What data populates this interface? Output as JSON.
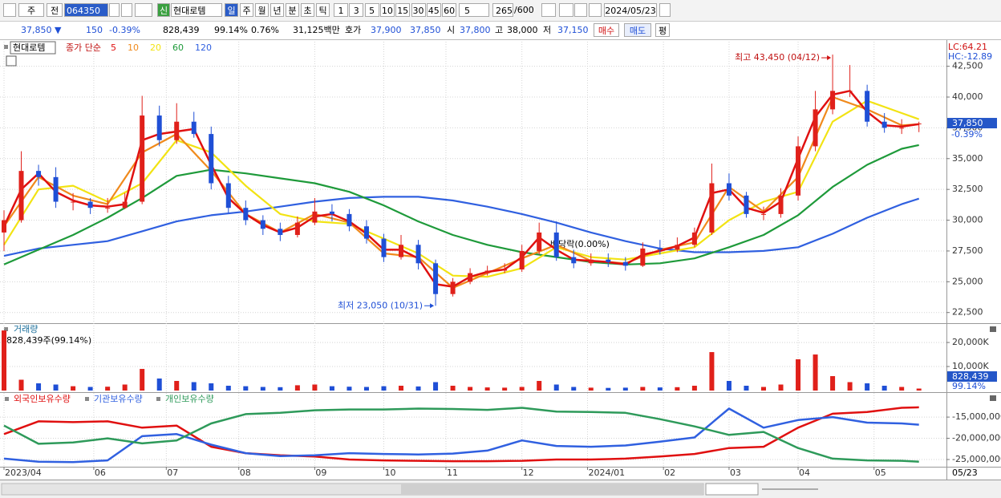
{
  "toolbar": {
    "period": "주",
    "prev": "전",
    "code": "064350",
    "new": "신",
    "name": "현대로템",
    "units": [
      "일",
      "주",
      "월",
      "년",
      "분",
      "초",
      "틱"
    ],
    "minutes": [
      "1",
      "3",
      "5",
      "10",
      "15",
      "30",
      "45",
      "60"
    ],
    "step": "5",
    "count": "265",
    "max": "/600",
    "date": "2024/05/23"
  },
  "quote": {
    "price": "37,850 ▼",
    "change": "150",
    "rate": "-0.39%",
    "volume": "828,439",
    "volume_rate": "99.14%",
    "turnover_rate": "0.76%",
    "amount": "31,125백만",
    "bid_label": "호가",
    "ask": "37,900",
    "bid": "37,850",
    "open_label": "시",
    "open": "37,800",
    "high_label": "고",
    "high": "38,000",
    "low_label": "저",
    "low": "37,150",
    "buy": "매수",
    "sell": "매도",
    "avg": "평"
  },
  "chart_data": [
    {
      "type": "candlestick",
      "name": "현대로템",
      "legend_prefix": "종가 단순",
      "lc": "LC:64.21",
      "hc": "HC:-12.89",
      "up_color": "#e0201a",
      "down_color": "#1f4fd6",
      "grid": true,
      "xlim": [
        0,
        266
      ],
      "ylim": [
        21700,
        44300
      ],
      "yticks": [
        {
          "value": 22500,
          "label": "22,500"
        },
        {
          "value": 25000,
          "label": "25,000"
        },
        {
          "value": 27500,
          "label": "27,500"
        },
        {
          "value": 30000,
          "label": "30,000"
        },
        {
          "value": 32500,
          "label": "32,500"
        },
        {
          "value": 35000,
          "label": "35,000"
        },
        {
          "value": 37500,
          "label": "37,500"
        },
        {
          "value": 40000,
          "label": "40,000"
        },
        {
          "value": 42500,
          "label": "42,500"
        }
      ],
      "x": [
        0,
        5,
        10,
        15,
        20,
        25,
        30,
        35,
        40,
        45,
        50,
        55,
        60,
        65,
        70,
        75,
        80,
        85,
        90,
        95,
        100,
        105,
        110,
        115,
        120,
        125,
        130,
        135,
        140,
        145,
        150,
        155,
        160,
        165,
        170,
        175,
        180,
        185,
        190,
        195,
        200,
        205,
        210,
        215,
        220,
        225,
        230,
        235,
        240,
        245,
        250,
        255,
        260,
        265
      ],
      "open": [
        29000,
        30000,
        34000,
        33500,
        31500,
        31500,
        31000,
        31000,
        31500,
        38500,
        36500,
        38000,
        37000,
        33000,
        31000,
        30000,
        29300,
        28800,
        29800,
        30700,
        30500,
        29500,
        28500,
        27000,
        28000,
        26500,
        24000,
        25000,
        25700,
        25900,
        26000,
        27500,
        29000,
        27000,
        26500,
        26800,
        26600,
        26300,
        27700,
        27600,
        28000,
        29000,
        33000,
        32000,
        30500,
        30500,
        32000,
        36000,
        39000,
        40500,
        40500,
        38000,
        37500,
        37800
      ],
      "high": [
        30800,
        35600,
        34500,
        34300,
        32200,
        31800,
        31800,
        32200,
        40100,
        39300,
        39500,
        38800,
        37600,
        33600,
        31600,
        30400,
        29800,
        30300,
        31800,
        31300,
        30900,
        30000,
        28900,
        28800,
        28400,
        26800,
        25300,
        26100,
        26300,
        26500,
        28000,
        29800,
        29900,
        27600,
        27300,
        27300,
        27000,
        28200,
        28400,
        28600,
        29400,
        34600,
        33800,
        32300,
        31100,
        32600,
        36800,
        40500,
        43450,
        42600,
        41000,
        38700,
        38200,
        38000
      ],
      "low": [
        27500,
        29800,
        32800,
        31000,
        30800,
        30500,
        30600,
        30900,
        31300,
        36000,
        36200,
        36700,
        32500,
        30600,
        29600,
        28800,
        28300,
        28600,
        29600,
        29900,
        29100,
        28100,
        26600,
        26800,
        26000,
        23050,
        23800,
        24800,
        25500,
        25700,
        25800,
        27200,
        26700,
        26100,
        26300,
        26200,
        25900,
        26200,
        27200,
        27400,
        27800,
        28800,
        31600,
        30200,
        30000,
        30200,
        31600,
        35600,
        38600,
        40000,
        37600,
        37100,
        37000,
        37150
      ],
      "close": [
        30000,
        34000,
        33500,
        31500,
        31500,
        31000,
        31000,
        31500,
        38500,
        36500,
        38000,
        37000,
        33000,
        31000,
        30000,
        29300,
        28800,
        29800,
        30700,
        30500,
        29500,
        28500,
        27000,
        28000,
        26500,
        24000,
        25000,
        25700,
        25900,
        26000,
        27500,
        29000,
        27000,
        26500,
        26800,
        26600,
        26300,
        27700,
        27600,
        28000,
        29000,
        33000,
        32000,
        30500,
        30500,
        32000,
        36000,
        39000,
        40500,
        40500,
        38000,
        37500,
        37500,
        37850
      ],
      "series": [
        {
          "name": "5",
          "color": "#e01010",
          "x": [
            0,
            5,
            10,
            15,
            20,
            25,
            30,
            35,
            40,
            45,
            50,
            55,
            60,
            65,
            70,
            75,
            80,
            85,
            90,
            95,
            100,
            105,
            110,
            115,
            120,
            125,
            130,
            135,
            140,
            145,
            150,
            155,
            160,
            165,
            170,
            175,
            180,
            185,
            190,
            195,
            200,
            205,
            210,
            215,
            220,
            225,
            230,
            235,
            240,
            245,
            250,
            255,
            260,
            265
          ],
          "values": [
            29500,
            32500,
            33800,
            32300,
            31600,
            31200,
            31100,
            31300,
            36500,
            37000,
            37200,
            37400,
            34500,
            31800,
            30500,
            29600,
            29000,
            29400,
            30300,
            30500,
            29900,
            28900,
            27600,
            27600,
            26900,
            24800,
            24600,
            25400,
            25800,
            26000,
            27000,
            28600,
            27600,
            26800,
            26700,
            26600,
            26400,
            27200,
            27500,
            27900,
            28600,
            32200,
            32500,
            31000,
            30600,
            31500,
            35000,
            38400,
            40200,
            40500,
            38800,
            37700,
            37600,
            37800
          ]
        },
        {
          "name": "10",
          "color": "#f08a1c",
          "x": [
            0,
            10,
            20,
            30,
            40,
            50,
            60,
            70,
            80,
            90,
            100,
            110,
            120,
            130,
            140,
            150,
            160,
            170,
            180,
            190,
            200,
            210,
            220,
            230,
            240,
            250,
            260,
            265
          ],
          "values": [
            29500,
            33500,
            32000,
            31300,
            35500,
            37000,
            34000,
            30500,
            29000,
            30500,
            29800,
            27300,
            27000,
            24500,
            25700,
            26900,
            28000,
            26700,
            26500,
            27600,
            28200,
            32700,
            30700,
            33500,
            40000,
            39000,
            37700,
            37800
          ]
        },
        {
          "name": "20",
          "color": "#f2e313",
          "x": [
            0,
            10,
            20,
            30,
            40,
            50,
            60,
            70,
            80,
            90,
            100,
            110,
            120,
            130,
            140,
            150,
            160,
            170,
            180,
            190,
            200,
            210,
            220,
            230,
            240,
            250,
            260,
            265
          ],
          "values": [
            28000,
            32500,
            32800,
            31500,
            33000,
            36500,
            35500,
            32800,
            30500,
            29900,
            29700,
            28500,
            27300,
            25500,
            25400,
            26100,
            27800,
            27000,
            26800,
            27300,
            27800,
            30000,
            31500,
            32300,
            38000,
            39700,
            38700,
            38200
          ]
        },
        {
          "name": "60",
          "color": "#1e9a3a",
          "x": [
            0,
            10,
            20,
            30,
            40,
            50,
            60,
            70,
            80,
            90,
            100,
            110,
            120,
            130,
            140,
            150,
            160,
            170,
            180,
            190,
            200,
            210,
            220,
            230,
            240,
            250,
            260,
            265
          ],
          "values": [
            26400,
            27600,
            28800,
            30200,
            31800,
            33600,
            34100,
            33800,
            33400,
            33000,
            32300,
            31200,
            29900,
            28800,
            28000,
            27400,
            27000,
            26600,
            26400,
            26500,
            26900,
            27800,
            28800,
            30400,
            32700,
            34500,
            35800,
            36100
          ]
        },
        {
          "name": "120",
          "color": "#3060e0",
          "x": [
            0,
            10,
            20,
            30,
            40,
            50,
            60,
            70,
            80,
            90,
            100,
            110,
            120,
            130,
            140,
            150,
            160,
            170,
            180,
            190,
            200,
            210,
            220,
            230,
            240,
            250,
            260,
            265
          ],
          "values": [
            27100,
            27700,
            28000,
            28300,
            29100,
            29900,
            30400,
            30700,
            31100,
            31500,
            31800,
            31900,
            31900,
            31600,
            31100,
            30500,
            29800,
            29000,
            28300,
            27700,
            27400,
            27400,
            27500,
            27800,
            28900,
            30200,
            31300,
            31750
          ]
        }
      ],
      "last": {
        "value": 37850,
        "label": "37,850"
      },
      "change_label": "-0.39%",
      "high_note": {
        "value": 43450,
        "label": "최고 43,450 (04/12)"
      },
      "low_note": {
        "value": 23050,
        "label": "최저 23,050 (10/31)"
      },
      "event_note": "배당락(0.00%)"
    },
    {
      "type": "bar",
      "title": "거래량",
      "summary": "828,439주(99.14%)",
      "grid": true,
      "xlim": [
        0,
        266
      ],
      "ylim": [
        0,
        27700
      ],
      "yticks": [
        {
          "value": 10000,
          "label": "10,000K"
        },
        {
          "value": 20000,
          "label": "20,000K"
        }
      ],
      "x": [
        0,
        5,
        10,
        15,
        20,
        25,
        30,
        35,
        40,
        45,
        50,
        55,
        60,
        65,
        70,
        75,
        80,
        85,
        90,
        95,
        100,
        105,
        110,
        115,
        120,
        125,
        130,
        135,
        140,
        145,
        150,
        155,
        160,
        165,
        170,
        175,
        180,
        185,
        190,
        195,
        200,
        205,
        210,
        215,
        220,
        225,
        230,
        235,
        240,
        245,
        250,
        255,
        260,
        265
      ],
      "values": [
        25000,
        4500,
        3000,
        2500,
        1800,
        1500,
        1600,
        2500,
        9000,
        5000,
        4000,
        3500,
        3000,
        2000,
        1800,
        1500,
        1400,
        2200,
        2500,
        1800,
        1600,
        1500,
        1800,
        2000,
        1700,
        3500,
        2000,
        1500,
        1300,
        1200,
        1500,
        4000,
        2500,
        1500,
        1200,
        1100,
        1200,
        1500,
        1300,
        1400,
        2000,
        16000,
        4000,
        2000,
        1500,
        2500,
        13000,
        15000,
        6000,
        3500,
        3000,
        2000,
        1500,
        828.439
      ],
      "current": {
        "value": 828.439,
        "label": "828,439"
      },
      "current_pct": "99.14%"
    },
    {
      "type": "line",
      "grid": true,
      "xlim": [
        0,
        266
      ],
      "ylim": [
        -26700000,
        -9500000
      ],
      "yticks": [
        {
          "value": -25000000,
          "label": "-25,000,000"
        },
        {
          "value": -20000000,
          "label": "-20,000,000"
        },
        {
          "value": -15000000,
          "label": "-15,000,000"
        }
      ],
      "xticks": [
        {
          "value": 0,
          "label": "2023/04"
        },
        {
          "value": 26,
          "label": "06"
        },
        {
          "value": 47,
          "label": "07"
        },
        {
          "value": 68,
          "label": "08"
        },
        {
          "value": 90,
          "label": "09"
        },
        {
          "value": 110,
          "label": "10"
        },
        {
          "value": 128,
          "label": "11"
        },
        {
          "value": 150,
          "label": "12"
        },
        {
          "value": 169,
          "label": "2024/01"
        },
        {
          "value": 191,
          "label": "02"
        },
        {
          "value": 210,
          "label": "03"
        },
        {
          "value": 230,
          "label": "04"
        },
        {
          "value": 252,
          "label": "05"
        }
      ],
      "last_date": "05/23",
      "x": [
        0,
        10,
        20,
        30,
        40,
        50,
        60,
        70,
        80,
        90,
        100,
        110,
        120,
        130,
        140,
        150,
        160,
        170,
        180,
        190,
        200,
        210,
        220,
        230,
        240,
        250,
        260,
        265
      ],
      "series": [
        {
          "name": "외국인보유수량",
          "color": "#e01010",
          "values": [
            -19000000,
            -16000000,
            -16200000,
            -16000000,
            -17500000,
            -17000000,
            -22000000,
            -23500000,
            -24000000,
            -24300000,
            -25000000,
            -25200000,
            -25300000,
            -25400000,
            -25400000,
            -25300000,
            -25000000,
            -25000000,
            -24800000,
            -24300000,
            -23700000,
            -22300000,
            -22000000,
            -17500000,
            -14200000,
            -13800000,
            -12800000,
            -12700000
          ]
        },
        {
          "name": "기관보유수량",
          "color": "#3060e0",
          "values": [
            -24800000,
            -25500000,
            -25600000,
            -25200000,
            -19500000,
            -19000000,
            -21500000,
            -23500000,
            -24200000,
            -24000000,
            -23500000,
            -23700000,
            -23800000,
            -23600000,
            -22900000,
            -20500000,
            -21800000,
            -22000000,
            -21700000,
            -20800000,
            -19800000,
            -13000000,
            -17500000,
            -15700000,
            -15000000,
            -16300000,
            -16500000,
            -16800000
          ]
        },
        {
          "name": "개인보유수량",
          "color": "#2e9a5a",
          "values": [
            -17000000,
            -21300000,
            -21000000,
            -20000000,
            -21200000,
            -20500000,
            -16500000,
            -14300000,
            -14000000,
            -13400000,
            -13200000,
            -13200000,
            -13000000,
            -13100000,
            -13300000,
            -12800000,
            -13700000,
            -13800000,
            -14000000,
            -15500000,
            -17200000,
            -19200000,
            -18500000,
            -22300000,
            -24800000,
            -25200000,
            -25300000,
            -25500000
          ]
        }
      ]
    }
  ]
}
